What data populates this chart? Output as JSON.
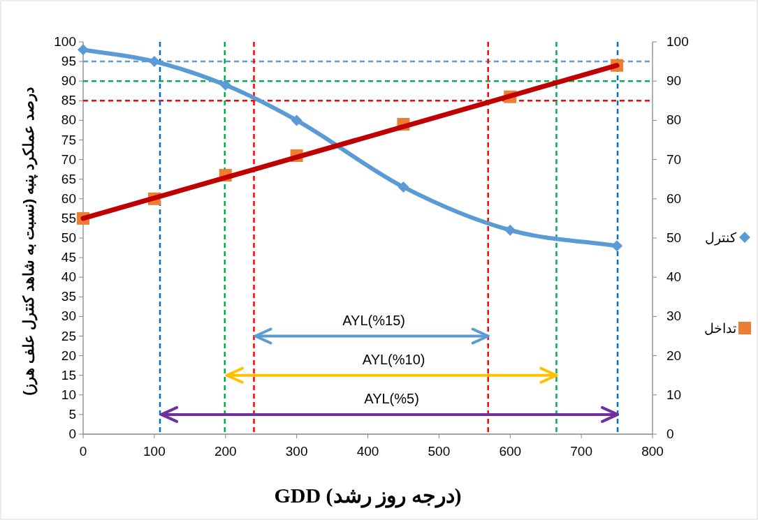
{
  "chart_data": {
    "type": "line",
    "xlabel": "GDD (درجه روز رشد)",
    "ylabel": "درصد عملکرد پنبه (نسبت به شاهد کنترل علف هرز)",
    "xlim": [
      0,
      800
    ],
    "xticks": [
      0,
      100,
      200,
      300,
      400,
      500,
      600,
      700,
      800
    ],
    "ylim": [
      0,
      100
    ],
    "yticks": [
      0,
      5,
      10,
      15,
      20,
      25,
      30,
      35,
      40,
      45,
      50,
      55,
      60,
      65,
      70,
      75,
      80,
      85,
      90,
      95,
      100
    ],
    "y2lim": [
      0,
      100
    ],
    "y2ticks": [
      0,
      10,
      20,
      30,
      40,
      50,
      60,
      70,
      80,
      90,
      100
    ],
    "grid": false,
    "legend": "right",
    "series": [
      {
        "name": "کنترل",
        "color": "#5b9bd5",
        "marker": "diamond",
        "x": [
          0,
          100,
          200,
          300,
          450,
          600,
          750
        ],
        "values": [
          98,
          95,
          89,
          80,
          63,
          52,
          48
        ]
      },
      {
        "name": "تداخل",
        "type": "scatter",
        "color": "#ed7d31",
        "marker": "square",
        "x": [
          0,
          100,
          200,
          300,
          450,
          600,
          750
        ],
        "values": [
          55,
          60,
          66,
          71,
          79,
          86,
          94
        ]
      },
      {
        "type": "line",
        "color": "#c00000",
        "marker": "none",
        "x": [
          0,
          750
        ],
        "values": [
          55,
          94
        ]
      },
      {
        "type": "line",
        "color": "#5b9bd5",
        "x": [
          242,
          569
        ],
        "values": [
          25,
          25
        ]
      },
      {
        "type": "line",
        "color": "#ffc000",
        "x": [
          202,
          665
        ],
        "values": [
          15,
          15
        ]
      },
      {
        "type": "line",
        "color": "#7030a0",
        "x": [
          110,
          751
        ],
        "values": [
          5,
          5
        ]
      }
    ],
    "ref_lines": [
      {
        "axis": "y",
        "value": 95,
        "color": "#5b9bd5",
        "line_style": "dashed"
      },
      {
        "axis": "y",
        "value": 90,
        "color": "#00b050",
        "line_style": "dashed"
      },
      {
        "axis": "y",
        "value": 85,
        "color": "#ff0000",
        "line_style": "dashed"
      },
      {
        "axis": "x",
        "value": 108,
        "color": "#0070c0",
        "line_style": "dashed"
      },
      {
        "axis": "x",
        "value": 751,
        "color": "#0070c0",
        "line_style": "dashed"
      },
      {
        "axis": "x",
        "value": 199,
        "color": "#00b050",
        "line_style": "dashed"
      },
      {
        "axis": "x",
        "value": 665,
        "color": "#00b050",
        "line_style": "dashed"
      },
      {
        "axis": "x",
        "value": 240,
        "color": "#ff0000",
        "line_style": "dashed"
      },
      {
        "axis": "x",
        "value": 569,
        "color": "#ff0000",
        "line_style": "dashed"
      }
    ],
    "annotations": [
      "AYL(%15)",
      "AYL(%10)",
      "AYL(%5)"
    ]
  }
}
